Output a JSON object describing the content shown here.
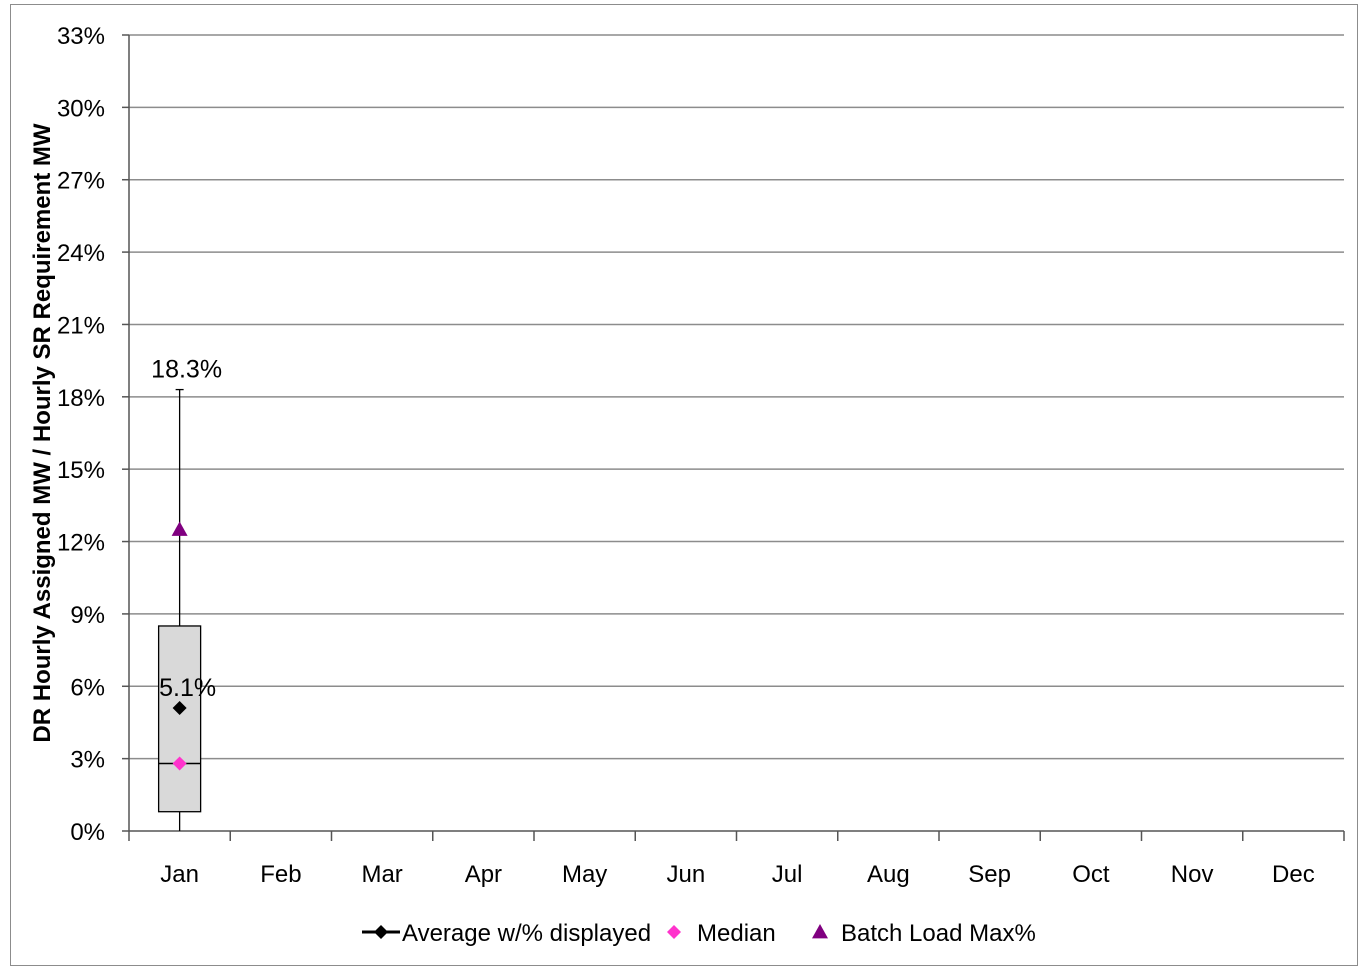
{
  "chart_data": {
    "type": "box",
    "ylabel": "DR Hourly Assigned MW / Hourly SR Requirement MW",
    "ylim": [
      0,
      33
    ],
    "yticks": [
      0,
      3,
      6,
      9,
      12,
      15,
      18,
      21,
      24,
      27,
      30,
      33
    ],
    "ytick_labels": [
      "0%",
      "3%",
      "6%",
      "9%",
      "12%",
      "15%",
      "18%",
      "21%",
      "24%",
      "27%",
      "30%",
      "33%"
    ],
    "categories": [
      "Jan",
      "Feb",
      "Mar",
      "Apr",
      "May",
      "Jun",
      "Jul",
      "Aug",
      "Sep",
      "Oct",
      "Nov",
      "Dec"
    ],
    "grid": true,
    "legend_position": "bottom",
    "boxes": [
      {
        "category": "Jan",
        "min": 0.0,
        "q1": 0.8,
        "median": 2.8,
        "q3": 8.5,
        "max": 18.3,
        "max_label": "18.3%"
      }
    ],
    "series": [
      {
        "name": "Average w/% displayed",
        "marker": "diamond",
        "color": "#000000",
        "points": [
          {
            "category": "Jan",
            "y": 5.1,
            "label": "5.1%"
          }
        ]
      },
      {
        "name": "Median",
        "marker": "diamond",
        "color": "#ff33cc",
        "points": [
          {
            "category": "Jan",
            "y": 2.8
          }
        ]
      },
      {
        "name": "Batch Load Max%",
        "marker": "triangle",
        "color": "#800080",
        "points": [
          {
            "category": "Jan",
            "y": 12.5
          }
        ]
      }
    ],
    "box_fill": "#d9d9d9",
    "grid_color": "#8c8c8c"
  }
}
